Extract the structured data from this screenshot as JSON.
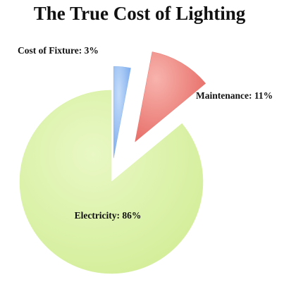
{
  "chart_data": {
    "type": "pie",
    "title": "The True Cost of Lighting",
    "values": [
      3,
      11,
      86
    ],
    "value_labels": [
      "Cost of Fixture: 3%",
      "Maintenance: 11%",
      "Electricity: 86%"
    ],
    "colors": [
      "#8db7ef",
      "#ea7b73",
      "#d9f2a3"
    ]
  }
}
